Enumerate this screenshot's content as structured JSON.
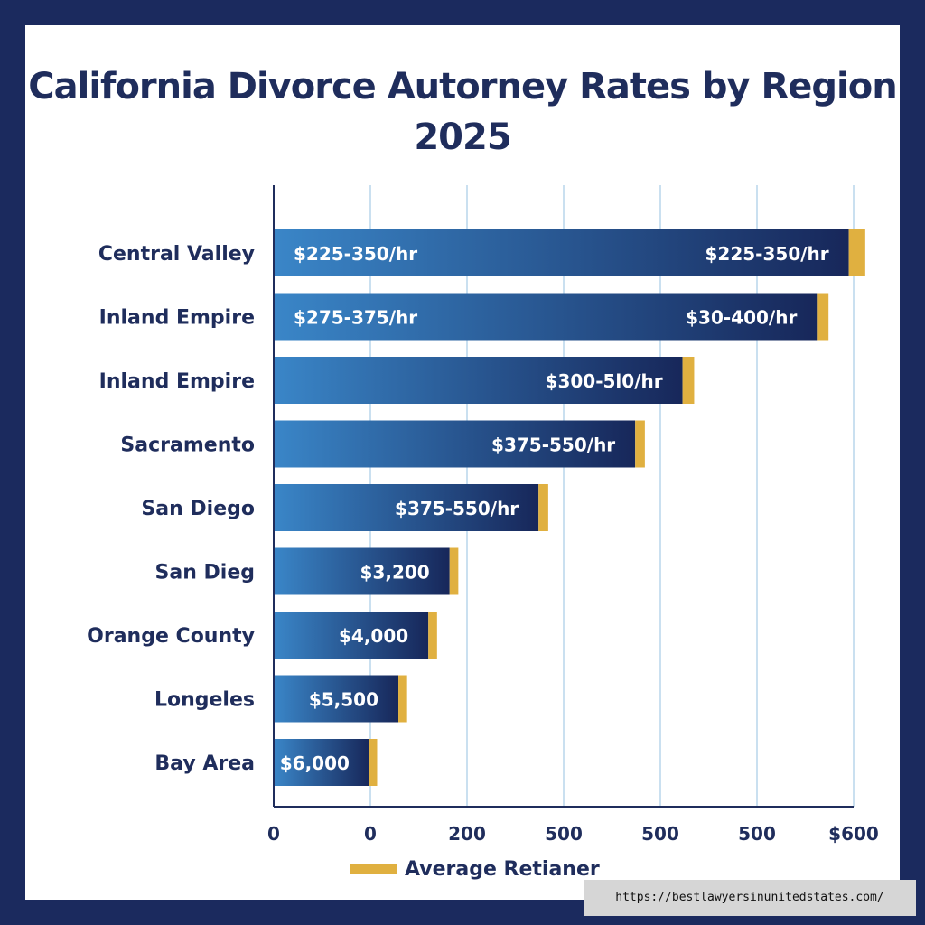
{
  "chart_data": {
    "type": "bar",
    "orientation": "horizontal",
    "title_lines": [
      "California Divorce Autorney Rates by Region",
      "2025"
    ],
    "x_tick_labels": [
      "0",
      "0",
      "200",
      "500",
      "500",
      "500",
      "$600"
    ],
    "grid": true,
    "legend": {
      "position": "bottom-left",
      "label": "Average Retianer"
    },
    "categories": [
      "Central Valley",
      "Inland Empire",
      "Inland Empire",
      "Sacramento",
      "San Diego",
      "San Dieg",
      "Orange County",
      "Longeles",
      "Bay Area"
    ],
    "series": [
      {
        "values": [
          595,
          562,
          423,
          374,
          274,
          182,
          160,
          129,
          99
        ]
      },
      {
        "name": "Average Retianer",
        "values": [
          17,
          12,
          12,
          10,
          10,
          9,
          9,
          9,
          8
        ]
      }
    ],
    "left_labels": [
      "$225-350/hr",
      "$275-375/hr",
      "",
      "",
      "",
      "",
      "",
      "",
      ""
    ],
    "right_labels": [
      "$225-350/hr",
      "$30-400/hr",
      "$300-5l0/hr",
      "$375-550/hr",
      "$375-550/hr",
      "$3,200",
      "$4,000",
      "$5,500",
      "$6,000"
    ],
    "xlim": [
      0,
      600
    ]
  },
  "watermark": "https://bestlawyersinunitedstates.com/",
  "colors": {
    "bar_start": "#3a86c8",
    "bar_end": "#17275a",
    "accent": "#e0b040",
    "frame": "#1b2a5e",
    "text": "#1f2d5c"
  }
}
